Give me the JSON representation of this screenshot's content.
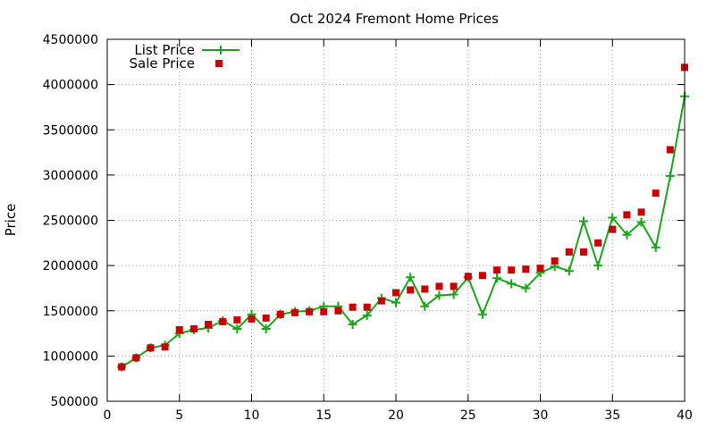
{
  "chart_data": {
    "type": "line",
    "title": "Oct 2024 Fremont Home Prices",
    "xlabel": "",
    "ylabel": "Price",
    "xlim": [
      0,
      40
    ],
    "ylim": [
      500000,
      4500000
    ],
    "xticks": [
      0,
      5,
      10,
      15,
      20,
      25,
      30,
      35,
      40
    ],
    "yticks": [
      500000,
      1000000,
      1500000,
      2000000,
      2500000,
      3000000,
      3500000,
      4000000,
      4500000
    ],
    "grid": true,
    "legend_position": "top-left",
    "x": [
      1,
      2,
      3,
      4,
      5,
      6,
      7,
      8,
      9,
      10,
      11,
      12,
      13,
      14,
      15,
      16,
      17,
      18,
      19,
      20,
      21,
      22,
      23,
      24,
      25,
      26,
      27,
      28,
      29,
      30,
      31,
      32,
      33,
      34,
      35,
      36,
      37,
      38,
      39,
      40
    ],
    "series": [
      {
        "name": "List Price",
        "style": "linespoints",
        "marker": "plus",
        "color": "#1aa51a",
        "values": [
          880000,
          980000,
          1090000,
          1120000,
          1250000,
          1290000,
          1310000,
          1390000,
          1300000,
          1460000,
          1300000,
          1460000,
          1490000,
          1500000,
          1550000,
          1550000,
          1350000,
          1450000,
          1640000,
          1590000,
          1870000,
          1550000,
          1670000,
          1680000,
          1870000,
          1460000,
          1860000,
          1800000,
          1750000,
          1920000,
          1990000,
          1940000,
          2490000,
          2000000,
          2530000,
          2340000,
          2480000,
          2200000,
          2990000,
          3870000
        ]
      },
      {
        "name": "Sale Price",
        "style": "points",
        "marker": "square",
        "color": "#c80000",
        "values": [
          880000,
          980000,
          1090000,
          1100000,
          1290000,
          1300000,
          1350000,
          1380000,
          1400000,
          1410000,
          1420000,
          1460000,
          1480000,
          1490000,
          1490000,
          1500000,
          1540000,
          1540000,
          1610000,
          1700000,
          1730000,
          1740000,
          1770000,
          1770000,
          1880000,
          1890000,
          1950000,
          1950000,
          1960000,
          1970000,
          2050000,
          2150000,
          2150000,
          2250000,
          2400000,
          2560000,
          2590000,
          2800000,
          3280000,
          4190000
        ]
      }
    ]
  }
}
